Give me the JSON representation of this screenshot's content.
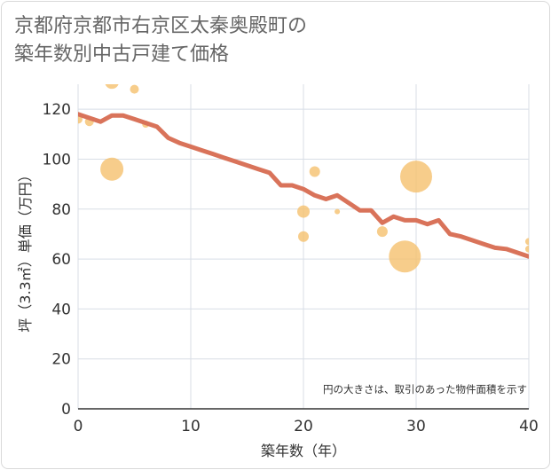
{
  "title_lines": [
    "京都府京都市右京区太秦奥殿町の",
    "築年数別中古戸建て価格"
  ],
  "colors": {
    "line": "#d9735a",
    "bubble": "#f5c06e",
    "grid": "#d8dee6",
    "text": "#333333"
  },
  "chart_data": {
    "type": "scatter",
    "title": "京都府京都市右京区太秦奥殿町の築年数別中古戸建て価格",
    "xlabel": "築年数（年）",
    "ylabel": "坪（3.3㎡）単価（万円）",
    "xlim": [
      0,
      40
    ],
    "ylim": [
      0,
      130
    ],
    "xticks": [
      0,
      10,
      20,
      30,
      40
    ],
    "yticks": [
      0,
      20,
      40,
      60,
      80,
      100,
      120
    ],
    "grid": true,
    "note": "円の大きさは、取引のあった物件面積を示す",
    "trend_line": {
      "x": [
        0,
        1,
        2,
        3,
        4,
        5,
        6,
        7,
        8,
        9,
        10,
        11,
        12,
        13,
        14,
        15,
        16,
        17,
        18,
        19,
        20,
        21,
        22,
        23,
        24,
        25,
        26,
        27,
        28,
        29,
        30,
        31,
        32,
        33,
        34,
        35,
        36,
        37,
        38,
        39,
        40
      ],
      "y": [
        118,
        116.5,
        115,
        117.5,
        117.5,
        116,
        114.5,
        113,
        108.5,
        106.5,
        105,
        103.5,
        102,
        100.5,
        99,
        97.5,
        96,
        94.5,
        89.5,
        89.5,
        88,
        85.5,
        84,
        85.5,
        82.5,
        79.5,
        79.5,
        74.5,
        77,
        75.5,
        75.5,
        74,
        75.5,
        70,
        69,
        67.5,
        66,
        64.5,
        64,
        62.5,
        61
      ]
    },
    "bubbles": [
      {
        "x": 0,
        "y": 116,
        "size": 5
      },
      {
        "x": 1,
        "y": 115,
        "size": 5
      },
      {
        "x": 3,
        "y": 131,
        "size": 8
      },
      {
        "x": 5,
        "y": 128,
        "size": 5
      },
      {
        "x": 3,
        "y": 96,
        "size": 13
      },
      {
        "x": 6,
        "y": 114,
        "size": 4
      },
      {
        "x": 21,
        "y": 95,
        "size": 6
      },
      {
        "x": 20,
        "y": 79,
        "size": 7
      },
      {
        "x": 20,
        "y": 69,
        "size": 6
      },
      {
        "x": 23,
        "y": 79,
        "size": 3
      },
      {
        "x": 27,
        "y": 71,
        "size": 6
      },
      {
        "x": 29,
        "y": 61,
        "size": 18
      },
      {
        "x": 30,
        "y": 93,
        "size": 18
      },
      {
        "x": 40,
        "y": 67,
        "size": 4
      },
      {
        "x": 40,
        "y": 64,
        "size": 4
      }
    ]
  }
}
